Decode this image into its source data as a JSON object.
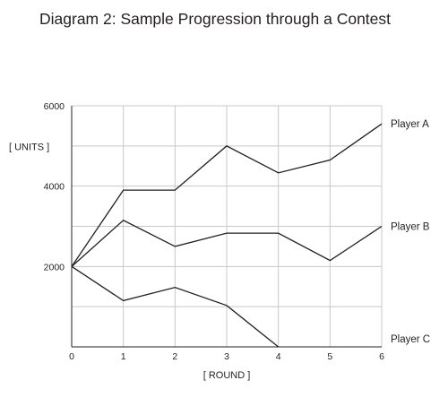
{
  "chart_data": {
    "type": "line",
    "title": "Diagram 2: Sample Progression through a Contest",
    "xlabel": "[ ROUND ]",
    "ylabel": "[ UNITS ]",
    "x": [
      0,
      1,
      2,
      3,
      4,
      5,
      6
    ],
    "xlim": [
      0,
      6
    ],
    "ylim": [
      0,
      6000
    ],
    "y_tick_labels": [
      {
        "value": 2000,
        "label": "2000"
      },
      {
        "value": 4000,
        "label": "4000"
      },
      {
        "value": 6000,
        "label": "6000"
      }
    ],
    "y_gridlines": [
      0,
      1000,
      2000,
      3000,
      4000,
      5000,
      6000
    ],
    "grid": true,
    "series": [
      {
        "name": "Player A",
        "values": [
          2000,
          3900,
          3900,
          5000,
          4330,
          4650,
          5550
        ]
      },
      {
        "name": "Player B",
        "values": [
          2000,
          3150,
          2500,
          2830,
          2830,
          2150,
          3000
        ]
      },
      {
        "name": "Player C",
        "values": [
          2000,
          1150,
          1480,
          1030,
          0,
          null,
          null
        ]
      }
    ],
    "series_label_values": {
      "Player A": 5550,
      "Player B": 3000,
      "Player C": 200
    }
  }
}
